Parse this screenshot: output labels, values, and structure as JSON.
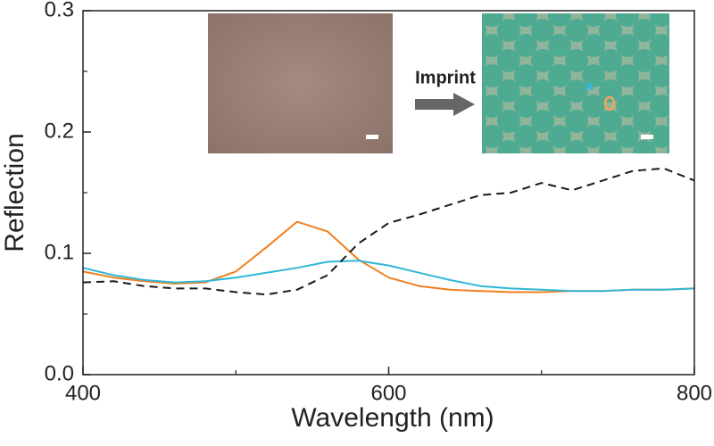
{
  "chart_data": {
    "type": "line",
    "xlabel": "Wavelength (nm)",
    "ylabel": "Reflection",
    "inset_label": "Imprint",
    "x": [
      400,
      420,
      440,
      460,
      480,
      500,
      520,
      540,
      560,
      580,
      600,
      620,
      640,
      660,
      680,
      700,
      720,
      740,
      760,
      780,
      800
    ],
    "series": [
      {
        "color": "#f07f1e",
        "dashed": false,
        "values": [
          0.085,
          0.08,
          0.077,
          0.075,
          0.076,
          0.085,
          0.105,
          0.126,
          0.118,
          0.095,
          0.08,
          0.073,
          0.07,
          0.069,
          0.068,
          0.068,
          0.069,
          0.069,
          0.07,
          0.07,
          0.071
        ]
      },
      {
        "color": "#2fb8d6",
        "dashed": false,
        "values": [
          0.088,
          0.082,
          0.078,
          0.076,
          0.077,
          0.08,
          0.084,
          0.088,
          0.093,
          0.094,
          0.09,
          0.084,
          0.078,
          0.073,
          0.071,
          0.07,
          0.069,
          0.069,
          0.07,
          0.07,
          0.071
        ]
      },
      {
        "color": "#1a1a1a",
        "dashed": true,
        "values": [
          0.076,
          0.077,
          0.073,
          0.071,
          0.071,
          0.068,
          0.066,
          0.07,
          0.082,
          0.108,
          0.125,
          0.132,
          0.14,
          0.148,
          0.15,
          0.158,
          0.152,
          0.16,
          0.168,
          0.17,
          0.16
        ]
      }
    ],
    "xlim": [
      400,
      800
    ],
    "xticks": [
      400,
      600,
      800
    ],
    "xminorticks": [
      500,
      700
    ],
    "ylim": [
      0,
      0.3
    ],
    "yticks": [
      {
        "value": 0,
        "label": "0.0"
      },
      0.1,
      0.2,
      0.3
    ],
    "yminorticks": [
      0.05,
      0.15,
      0.25
    ]
  }
}
